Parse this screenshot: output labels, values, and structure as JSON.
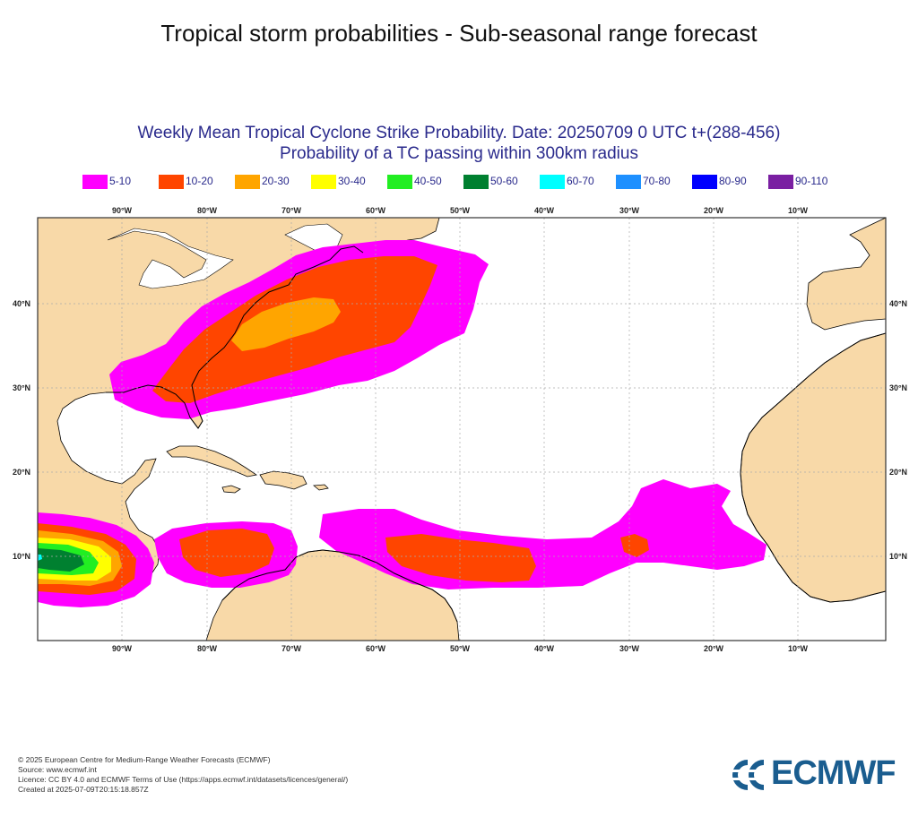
{
  "header": {
    "title": "Tropical storm probabilities - Sub-seasonal range forecast"
  },
  "map": {
    "title_line1": "Weekly Mean Tropical Cyclone Strike Probability. Date: 20250709  0 UTC   t+(288-456)",
    "title_line2": "Probability of a TC passing within  300km radius",
    "longitude_ticks": [
      "90°W",
      "80°W",
      "70°W",
      "60°W",
      "50°W",
      "40°W",
      "30°W",
      "20°W",
      "10°W"
    ],
    "latitude_ticks": [
      "40°N",
      "30°N",
      "20°N",
      "10°N"
    ],
    "land_color": "#f8d9a8",
    "ocean_color": "#ffffff",
    "legend": [
      {
        "label": "5-10",
        "color": "#ff00ff"
      },
      {
        "label": "10-20",
        "color": "#ff4500"
      },
      {
        "label": "20-30",
        "color": "#ffa500"
      },
      {
        "label": "30-40",
        "color": "#ffff00"
      },
      {
        "label": "40-50",
        "color": "#22ee22"
      },
      {
        "label": "50-60",
        "color": "#008030"
      },
      {
        "label": "60-70",
        "color": "#00ffff"
      },
      {
        "label": "70-80",
        "color": "#1e90ff"
      },
      {
        "label": "80-90",
        "color": "#0000ff"
      },
      {
        "label": "90-110",
        "color": "#7a1fa2"
      }
    ]
  },
  "footer": {
    "copyright": "© 2025 European Centre for Medium-Range Weather Forecasts (ECMWF)",
    "source": "Source: www.ecmwf.int",
    "licence": "Licence: CC BY 4.0 and ECMWF Terms of Use (https://apps.ecmwf.int/datasets/licences/general/)",
    "created": "Created at 2025-07-09T20:15:18.857Z"
  },
  "logo": {
    "text": "ECMWF",
    "color": "#1a5d8f"
  }
}
